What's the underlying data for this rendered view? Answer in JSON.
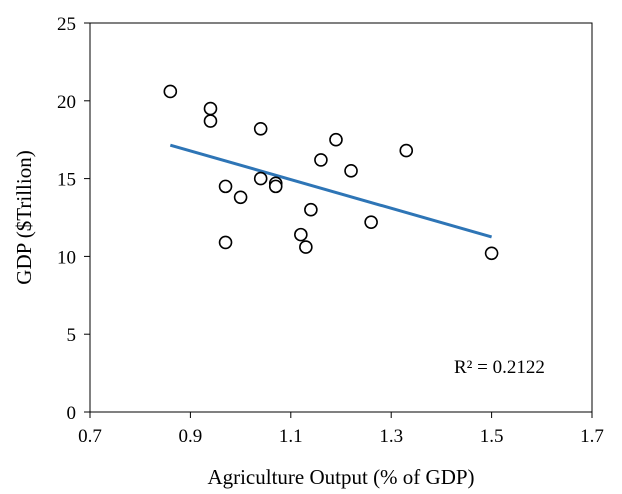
{
  "chart_data": {
    "type": "scatter",
    "title": "",
    "xlabel": "Agriculture Output (% of GDP)",
    "ylabel": "GDP ($Trillion)",
    "xlim": [
      0.7,
      1.7
    ],
    "ylim": [
      0,
      25
    ],
    "x_ticks": [
      0.7,
      0.9,
      1.1,
      1.3,
      1.5,
      1.7
    ],
    "x_tick_labels": [
      "0.7",
      "0.9",
      "1.1",
      "1.3",
      "1.5",
      "1.7"
    ],
    "y_ticks": [
      0,
      5,
      10,
      15,
      20,
      25
    ],
    "y_tick_labels": [
      "0",
      "5",
      "10",
      "15",
      "20",
      "25"
    ],
    "grid": false,
    "marker": "hollow-circle",
    "marker_color": "#000000",
    "points": [
      {
        "x": 0.86,
        "y": 20.6
      },
      {
        "x": 0.94,
        "y": 19.5
      },
      {
        "x": 0.94,
        "y": 18.7
      },
      {
        "x": 0.97,
        "y": 14.5
      },
      {
        "x": 0.97,
        "y": 10.9
      },
      {
        "x": 1.0,
        "y": 13.8
      },
      {
        "x": 1.04,
        "y": 18.2
      },
      {
        "x": 1.04,
        "y": 15.0
      },
      {
        "x": 1.07,
        "y": 14.7
      },
      {
        "x": 1.07,
        "y": 14.5
      },
      {
        "x": 1.12,
        "y": 11.4
      },
      {
        "x": 1.13,
        "y": 10.6
      },
      {
        "x": 1.14,
        "y": 13.0
      },
      {
        "x": 1.16,
        "y": 16.2
      },
      {
        "x": 1.19,
        "y": 17.5
      },
      {
        "x": 1.22,
        "y": 15.5
      },
      {
        "x": 1.26,
        "y": 12.2
      },
      {
        "x": 1.33,
        "y": 16.8
      },
      {
        "x": 1.5,
        "y": 10.2
      }
    ],
    "trendline": {
      "type": "linear",
      "x_range": [
        0.86,
        1.5
      ],
      "y_at_start": 17.15,
      "y_at_end": 11.25,
      "color": "#2e75b6"
    },
    "annotation": "R² = 0.2122"
  }
}
